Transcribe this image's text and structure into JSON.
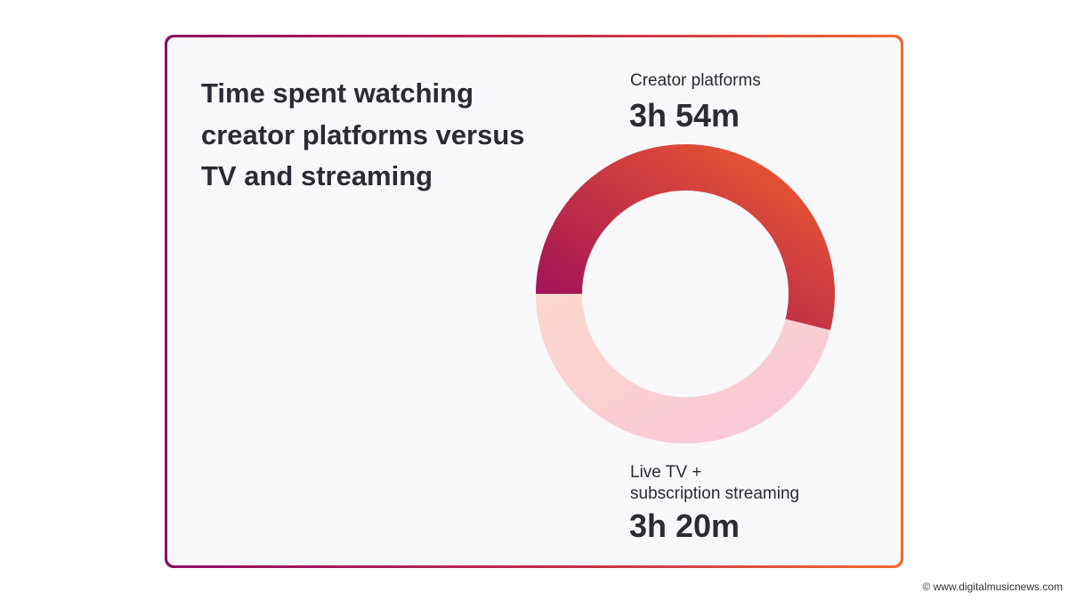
{
  "chart_data": {
    "type": "donut",
    "title": "Time spent watching creator platforms versus TV and streaming",
    "categories": [
      "Creator platforms",
      "Live TV +\nsubscription streaming"
    ],
    "values": [
      234,
      200
    ],
    "value_labels": [
      "3h 54m",
      "3h 20m"
    ],
    "colors": [
      [
        "#990a5c",
        "#f3612b"
      ],
      [
        "#fdd8cb",
        "#f7c6dc"
      ]
    ]
  },
  "footer": {
    "credit": "© www.digitalmusicnews.com"
  }
}
